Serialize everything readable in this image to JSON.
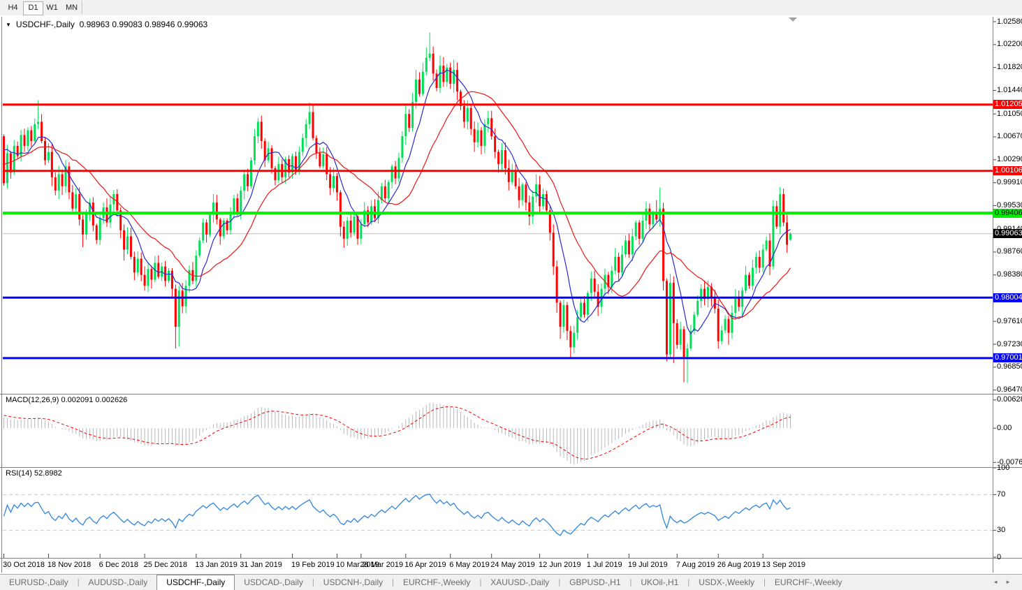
{
  "toolbar": {
    "timeframes": [
      {
        "label": "H4",
        "active": false
      },
      {
        "label": "D1",
        "active": true
      },
      {
        "label": "W1",
        "active": false
      },
      {
        "label": "MN",
        "active": false
      }
    ]
  },
  "chart": {
    "title": {
      "symbol": "USDCHF-,Daily",
      "open": "0.98963",
      "high": "0.99083",
      "low": "0.98946",
      "close": "0.99063"
    },
    "indicator_labels": {
      "macd": "MACD(12,26,9)",
      "macd_values": "0.002091 0.002626",
      "rsi": "RSI(14)",
      "rsi_value": "52.8982"
    }
  },
  "chart_data": {
    "type": "candlestick_with_indicators",
    "symbol": "USDCHF-,Daily",
    "timeframe": "Daily",
    "last_bar_ohlc": {
      "open": 0.98963,
      "high": 0.99083,
      "low": 0.98946,
      "close": 0.99063
    },
    "price_axis": {
      "ylim": [
        0.9642,
        1.0265
      ],
      "ticks": [
        "1.02580",
        "1.02200",
        "1.01820",
        "1.01440",
        "1.01050",
        "1.00670",
        "1.00290",
        "0.99910",
        "0.99530",
        "0.99140",
        "0.98760",
        "0.98380",
        "0.97610",
        "0.97230",
        "0.96850",
        "0.96470"
      ]
    },
    "time_axis": {
      "labels": [
        "30 Oct 2018",
        "18 Nov 2018",
        "6 Dec 2018",
        "25 Dec 2018",
        "13 Jan 2019",
        "31 Jan 2019",
        "19 Feb 2019",
        "10 Mar 2019",
        "28 Mar 2019",
        "16 Apr 2019",
        "6 May 2019",
        "24 May 2019",
        "12 Jun 2019",
        "1 Jul 2019",
        "19 Jul 2019",
        "7 Aug 2019",
        "26 Aug 2019",
        "13 Sep 2019"
      ],
      "day_indices": [
        0,
        13,
        28,
        41,
        56,
        69,
        84,
        97,
        104,
        117,
        130,
        142,
        156,
        170,
        182,
        196,
        208,
        221
      ]
    },
    "horizontal_levels": [
      {
        "name": "resistance-1",
        "value": 1.01205,
        "label": "1.01205",
        "color": "#FF0000",
        "width": 3,
        "text_color": "#FFFFFF"
      },
      {
        "name": "resistance-2",
        "value": 1.00106,
        "label": "1.00106",
        "color": "#FF0000",
        "width": 3,
        "text_color": "#FFFFFF"
      },
      {
        "name": "pivot-green",
        "value": 0.99406,
        "label": "0.99406",
        "color": "#00EF00",
        "width": 4,
        "text_color": "#000000"
      },
      {
        "name": "support-1",
        "value": 0.98004,
        "label": "0.98004",
        "color": "#0000FF",
        "width": 3,
        "text_color": "#FFFFFF"
      },
      {
        "name": "support-2",
        "value": 0.97001,
        "label": "0.97001",
        "color": "#0000FF",
        "width": 3,
        "text_color": "#FFFFFF"
      }
    ],
    "current_price": {
      "value": 0.99063,
      "label": "0.99063"
    },
    "candles": {
      "first_open": 1.0068,
      "closes": [
        0.999,
        1.004,
        1.0008,
        1.0052,
        1.0035,
        1.007,
        1.0052,
        1.0078,
        1.006,
        1.0088,
        1.0092,
        1.006,
        1.0028,
        1.0042,
        1.0,
        0.9978,
        1.0005,
        0.9985,
        1.0018,
        0.9975,
        0.9948,
        0.9972,
        0.993,
        0.9905,
        0.9942,
        0.9958,
        0.992,
        0.9896,
        0.9932,
        0.995,
        0.9925,
        0.9955,
        0.9972,
        0.9945,
        0.9912,
        0.988,
        0.9902,
        0.9868,
        0.9842,
        0.9865,
        0.9838,
        0.982,
        0.9848,
        0.983,
        0.9858,
        0.9835,
        0.9852,
        0.9828,
        0.9845,
        0.9815,
        0.9752,
        0.9812,
        0.9786,
        0.982,
        0.9846,
        0.9828,
        0.987,
        0.9895,
        0.9925,
        0.9905,
        0.9938,
        0.9958,
        0.993,
        0.9902,
        0.9928,
        0.9912,
        0.994,
        0.9965,
        0.9942,
        0.9978,
        1.0005,
        0.9985,
        1.0028,
        1.0068,
        1.0092,
        1.006,
        1.0028,
        1.0048,
        1.0015,
        0.9995,
        1.0022,
        1.0,
        1.003,
        1.0008,
        1.0035,
        1.0012,
        1.0042,
        1.0065,
        1.0088,
        1.0108,
        1.0065,
        1.004,
        1.0018,
        1.0038,
        1.0005,
        0.9982,
        1.0002,
        0.9975,
        0.9918,
        0.9898,
        0.9928,
        0.9908,
        0.9935,
        0.9898,
        0.9922,
        0.9945,
        0.9925,
        0.9952,
        0.9932,
        0.9962,
        0.9985,
        0.9965,
        0.9992,
        1.0018,
        0.9998,
        1.0032,
        1.0068,
        1.0105,
        1.0082,
        1.0125,
        1.0162,
        1.0138,
        1.0175,
        1.0198,
        1.0205,
        1.0172,
        1.0148,
        1.0185,
        1.0158,
        1.0182,
        1.0155,
        1.0178,
        1.0142,
        1.0118,
        1.0092,
        1.0115,
        1.008,
        1.0058,
        1.0078,
        1.0052,
        1.0088,
        1.0098,
        1.0068,
        1.0042,
        1.0022,
        1.0045,
        1.0015,
        0.9992,
        1.0012,
        0.9985,
        0.9962,
        0.9988,
        0.9958,
        0.9935,
        0.9968,
        0.9988,
        0.9952,
        0.9972,
        0.9945,
        0.9908,
        0.9852,
        0.9792,
        0.9752,
        0.9788,
        0.9745,
        0.9718,
        0.9742,
        0.9768,
        0.9792,
        0.9772,
        0.9808,
        0.9832,
        0.981,
        0.9785,
        0.9815,
        0.9838,
        0.9818,
        0.9845,
        0.9868,
        0.9842,
        0.9872,
        0.9895,
        0.9872,
        0.9902,
        0.9925,
        0.9898,
        0.9928,
        0.9948,
        0.9922,
        0.994,
        0.993,
        0.9948,
        0.9828,
        0.9706,
        0.9825,
        0.9758,
        0.9722,
        0.9748,
        0.9702,
        0.9716,
        0.9745,
        0.9772,
        0.9795,
        0.9815,
        0.9798,
        0.9818,
        0.98,
        0.9782,
        0.9728,
        0.9746,
        0.9765,
        0.9742,
        0.9775,
        0.9802,
        0.9785,
        0.9812,
        0.9838,
        0.982,
        0.985,
        0.9868,
        0.985,
        0.988,
        0.9895,
        0.9852,
        0.9952,
        0.9918,
        0.9972,
        0.9925,
        0.9888,
        0.99063
      ],
      "wick_overrides": {
        "10": [
          1.0128,
          null
        ],
        "23": [
          null,
          0.9884
        ],
        "35": [
          null,
          0.9862
        ],
        "49": [
          null,
          0.98
        ],
        "50": [
          0.9822,
          0.9716
        ],
        "51": [
          0.982,
          0.9719
        ],
        "61": [
          0.9972,
          null
        ],
        "63": [
          null,
          0.9888
        ],
        "73": [
          1.008,
          null
        ],
        "74": [
          1.0098,
          null
        ],
        "89": [
          1.0124,
          null
        ],
        "98": [
          null,
          0.9902
        ],
        "99": [
          null,
          0.9883
        ],
        "103": [
          null,
          0.9888
        ],
        "119": [
          1.014,
          null
        ],
        "120": [
          1.0178,
          null
        ],
        "123": [
          1.0215,
          null
        ],
        "124": [
          1.024,
          null
        ],
        "127": [
          1.0202,
          null
        ],
        "131": [
          1.0195,
          null
        ],
        "137": [
          null,
          1.0042
        ],
        "144": [
          null,
          1.0008
        ],
        "147": [
          null,
          0.9978
        ],
        "153": [
          null,
          0.992
        ],
        "155": [
          1.0005,
          null
        ],
        "159": [
          null,
          0.9895
        ],
        "160": [
          null,
          0.9838
        ],
        "161": [
          null,
          0.9775
        ],
        "162": [
          null,
          0.9732
        ],
        "165": [
          null,
          0.97
        ],
        "166": [
          null,
          0.9712
        ],
        "173": [
          null,
          0.977
        ],
        "190": [
          0.9962,
          null
        ],
        "191": [
          0.9983,
          0.9922
        ],
        "192": [
          null,
          0.9812
        ],
        "193": [
          null,
          0.9695
        ],
        "194": [
          0.9835,
          null
        ],
        "195": [
          null,
          0.9692
        ],
        "198": [
          null,
          0.966
        ],
        "199": [
          null,
          0.9659
        ],
        "208": [
          null,
          0.9716
        ],
        "211": [
          null,
          0.9722
        ],
        "223": [
          null,
          0.984
        ],
        "224": [
          0.9962,
          null
        ],
        "226": [
          0.9984,
          null
        ],
        "228": [
          null,
          0.9875
        ]
      }
    },
    "moving_averages": [
      {
        "type": "sma",
        "period": 8,
        "color": "#2A2AD4",
        "name": "ma-fast-line"
      },
      {
        "type": "sma",
        "period": 21,
        "color": "#ED1515",
        "name": "ma-slow-line"
      }
    ],
    "macd": {
      "params": [
        12,
        26,
        9
      ],
      "current_values": [
        0.002091,
        0.002626
      ],
      "ylim": [
        -0.0085,
        0.0075
      ],
      "axis_ticks": [
        {
          "text": "0.006286",
          "value": 0.006286
        },
        {
          "text": "0.00",
          "value": 0
        },
        {
          "text": "-0.00762",
          "value": -0.00762
        }
      ],
      "colors": {
        "histogram": "#B8B8B8",
        "signal": "#FF0000"
      }
    },
    "rsi": {
      "period": 14,
      "current": 52.8982,
      "axis_ticks": [
        {
          "text": "100",
          "value": 100
        },
        {
          "text": "70",
          "value": 70
        },
        {
          "text": "30",
          "value": 30
        },
        {
          "text": "0",
          "value": 0
        }
      ],
      "dashed_levels": [
        70,
        30
      ],
      "color": "#2E86E0"
    },
    "colors": {
      "up_candle": "#00E057",
      "down_candle": "#FF0000",
      "background": "#FFFFFF",
      "current_price_line": "#BEBEBE"
    },
    "indicator_warmup": {
      "bars": 40,
      "from": 0.988,
      "to": 1.0068,
      "wobble": 0.0009
    }
  },
  "tab_bar": {
    "tabs": [
      {
        "label": "EURUSD-,Daily",
        "active": false
      },
      {
        "label": "AUDUSD-,Daily",
        "active": false
      },
      {
        "label": "USDCHF-,Daily",
        "active": true
      },
      {
        "label": "USDCAD-,Daily",
        "active": false
      },
      {
        "label": "USDCNH-,Daily",
        "active": false
      },
      {
        "label": "EURCHF-,Weekly",
        "active": false
      },
      {
        "label": "XAUUSD-,Daily",
        "active": false
      },
      {
        "label": "GBPUSD-,H1",
        "active": false
      },
      {
        "label": "UKOil-,H1",
        "active": false
      },
      {
        "label": "USDX-,Weekly",
        "active": false
      },
      {
        "label": "EURCHF-,Weekly",
        "active": false
      }
    ],
    "scroll_left_icon": "◄",
    "scroll_right_icon": "►"
  }
}
